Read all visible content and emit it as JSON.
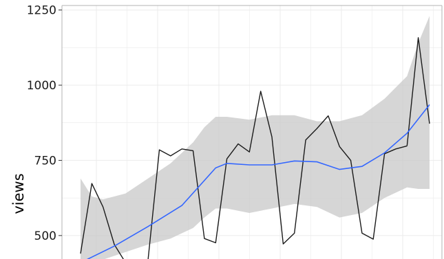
{
  "chart_data": {
    "type": "line",
    "title": "",
    "xlabel": "",
    "ylabel": "views",
    "ylim": [
      422,
      1265
    ],
    "y_ticks": [
      500,
      750,
      1000,
      1250
    ],
    "grid": true,
    "background": "#ffffff",
    "colors": {
      "observed": "#1a1a1a",
      "smooth": "#3366ff",
      "band": "#c8c8c8",
      "grid": "#ebebeb",
      "axis": "#b3b3b3"
    },
    "series": [
      {
        "role": "observed",
        "x": [
          1,
          2,
          3,
          4,
          5,
          6,
          7,
          8,
          9,
          10,
          11,
          12,
          13,
          14,
          15,
          16,
          17,
          18,
          19,
          20,
          21,
          22,
          23,
          24,
          25,
          26,
          27,
          28,
          29,
          30
        ],
        "y": [
          440,
          673,
          595,
          470,
          410,
          380,
          420,
          785,
          765,
          788,
          782,
          490,
          476,
          755,
          805,
          778,
          980,
          828,
          472,
          508,
          818,
          856,
          898,
          796,
          750,
          508,
          488,
          772,
          788,
          798
        ]
      },
      {
        "role": "observed-tail",
        "x": [
          30,
          31,
          32
        ],
        "y": [
          798,
          1158,
          872
        ]
      },
      {
        "role": "smooth",
        "x": [
          1,
          4,
          7,
          10,
          13,
          14,
          16,
          18,
          20,
          22,
          24,
          26,
          28,
          30,
          32
        ],
        "y": [
          410,
          465,
          530,
          600,
          725,
          740,
          735,
          735,
          748,
          745,
          720,
          730,
          775,
          840,
          935
        ]
      }
    ],
    "band": {
      "x": [
        1,
        2,
        3,
        5,
        7,
        9,
        11,
        12,
        13,
        14,
        16,
        18,
        20,
        22,
        24,
        26,
        28,
        30,
        31,
        32
      ],
      "lower": [
        395,
        410,
        420,
        445,
        470,
        490,
        525,
        560,
        590,
        590,
        575,
        590,
        605,
        595,
        560,
        575,
        625,
        660,
        655,
        655
      ],
      "upper": [
        690,
        630,
        620,
        640,
        690,
        740,
        810,
        860,
        895,
        895,
        885,
        900,
        900,
        880,
        880,
        900,
        955,
        1030,
        1140,
        1230
      ]
    }
  }
}
